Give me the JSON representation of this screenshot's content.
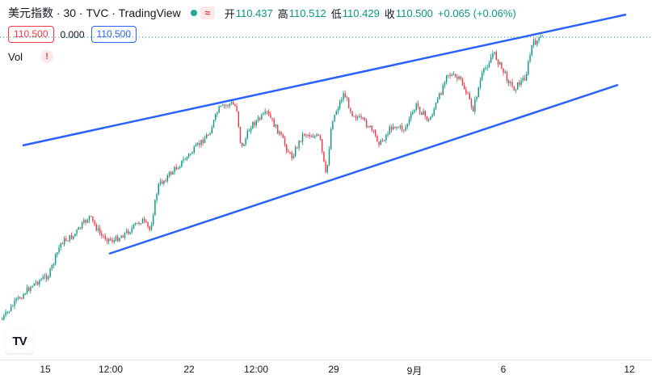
{
  "header": {
    "symbol_title": "美元指数 · 30 · TVC · TradingView",
    "wave_icon": "≈",
    "ohlc": [
      {
        "label": "开",
        "value": "110.437"
      },
      {
        "label": "高",
        "value": "110.512"
      },
      {
        "label": "低",
        "value": "110.429"
      },
      {
        "label": "收",
        "value": "110.500"
      }
    ],
    "change": "+0.065 (+0.06%)"
  },
  "trade": {
    "sell_price": "110.500",
    "spread": "0.000",
    "buy_price": "110.500"
  },
  "indicator": {
    "label": "Vol",
    "warning_icon": "!"
  },
  "logo_text": "TV",
  "time_axis": {
    "ticks": [
      "15",
      "12:00",
      "22",
      "12:00",
      "29",
      "9月",
      "6",
      "12"
    ]
  },
  "colors": {
    "up": "#089981",
    "down": "#f23645",
    "trendline": "#2962ff",
    "last_price_line": "#089981"
  },
  "chart_data": {
    "type": "candlestick",
    "x_ticks": [
      "15",
      "12:00",
      "22",
      "12:00",
      "29",
      "9月",
      "6",
      "12"
    ],
    "last_close": 110.5,
    "drawings": [
      "upper trendline channel",
      "lower trendline channel"
    ],
    "grid": false
  }
}
